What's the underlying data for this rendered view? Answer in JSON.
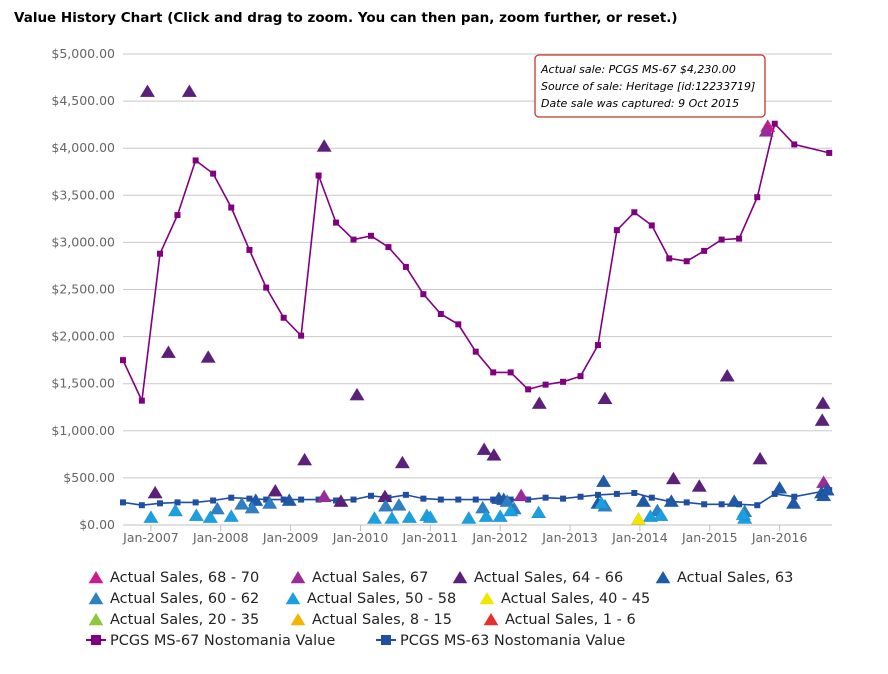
{
  "title": "Value History Chart (Click and drag to zoom. You can then pan, zoom further, or reset.)",
  "tooltip": {
    "lines": [
      "Actual sale: PCGS MS-67 $4,230.00",
      "Source of sale: Heritage [id:12233719]",
      "Date sale was captured: 9 Oct 2015"
    ]
  },
  "chart_data": {
    "type": "scatter",
    "ylim": [
      0,
      5000
    ],
    "xlim": [
      2006.6,
      2016.75
    ],
    "y_ticks": [
      0,
      500,
      1000,
      1500,
      2000,
      2500,
      3000,
      3500,
      4000,
      4500,
      5000
    ],
    "y_tick_labels": [
      "$0.00",
      "$500.00",
      "$1,000.00",
      "$1,500.00",
      "$2,000.00",
      "$2,500.00",
      "$3,000.00",
      "$3,500.00",
      "$4,000.00",
      "$4,500.00",
      "$5,000.00"
    ],
    "x_ticks": [
      2007,
      2008,
      2009,
      2010,
      2011,
      2012,
      2013,
      2014,
      2015,
      2016
    ],
    "x_tick_labels": [
      "Jan-2007",
      "Jan-2008",
      "Jan-2009",
      "Jan-2010",
      "Jan-2011",
      "Jan-2012",
      "Jan-2013",
      "Jan-2014",
      "Jan-2015",
      "Jan-2016"
    ],
    "grid": true,
    "legend_position": "bottom",
    "series": [
      {
        "name": "Actual Sales, 68 - 70",
        "marker": "triangle",
        "color": "#cc1a8c",
        "points": [
          [
            2015.83,
            4230
          ]
        ]
      },
      {
        "name": "Actual Sales, 67",
        "marker": "triangle",
        "color": "#9b2a9b",
        "points": [
          [
            2015.81,
            4180
          ],
          [
            2009.48,
            300
          ],
          [
            2012.3,
            310
          ],
          [
            2016.63,
            450
          ]
        ]
      },
      {
        "name": "Actual Sales, 64 - 66",
        "marker": "triangle",
        "color": "#5c1f7a",
        "points": [
          [
            2006.95,
            4600
          ],
          [
            2007.55,
            4600
          ],
          [
            2009.48,
            4020
          ],
          [
            2007.25,
            1830
          ],
          [
            2007.82,
            1780
          ],
          [
            2009.95,
            1380
          ],
          [
            2012.56,
            1290
          ],
          [
            2013.5,
            1340
          ],
          [
            2015.25,
            1580
          ],
          [
            2016.62,
            1290
          ],
          [
            2016.61,
            1110
          ],
          [
            2011.77,
            800
          ],
          [
            2011.91,
            740
          ],
          [
            2009.2,
            690
          ],
          [
            2010.6,
            660
          ],
          [
            2015.72,
            700
          ],
          [
            2014.48,
            490
          ],
          [
            2014.85,
            410
          ],
          [
            2007.06,
            340
          ],
          [
            2008.78,
            360
          ],
          [
            2009.72,
            250
          ],
          [
            2010.35,
            300
          ]
        ]
      },
      {
        "name": "Actual Sales, 63",
        "marker": "triangle",
        "color": "#1f5aa8",
        "points": [
          [
            2013.48,
            460
          ],
          [
            2016.0,
            390
          ],
          [
            2016.6,
            340
          ],
          [
            2008.5,
            260
          ],
          [
            2008.98,
            260
          ],
          [
            2011.98,
            280
          ],
          [
            2012.05,
            270
          ],
          [
            2014.05,
            250
          ],
          [
            2014.45,
            250
          ],
          [
            2015.35,
            250
          ],
          [
            2016.2,
            230
          ],
          [
            2013.4,
            230
          ],
          [
            2016.63,
            310
          ],
          [
            2016.68,
            370
          ]
        ]
      },
      {
        "name": "Actual Sales, 60 - 62",
        "marker": "triangle",
        "color": "#2e7fc4",
        "points": [
          [
            2008.3,
            220
          ],
          [
            2008.45,
            180
          ],
          [
            2010.36,
            200
          ],
          [
            2010.55,
            210
          ],
          [
            2011.75,
            180
          ],
          [
            2012.2,
            170
          ],
          [
            2013.5,
            200
          ],
          [
            2014.25,
            150
          ],
          [
            2015.5,
            140
          ],
          [
            2008.7,
            230
          ],
          [
            2012.1,
            250
          ],
          [
            2007.95,
            170
          ]
        ]
      },
      {
        "name": "Actual Sales, 50 - 58",
        "marker": "triangle",
        "color": "#1aa0e0",
        "points": [
          [
            2007.0,
            80
          ],
          [
            2007.35,
            150
          ],
          [
            2007.65,
            100
          ],
          [
            2007.85,
            80
          ],
          [
            2008.15,
            90
          ],
          [
            2010.2,
            70
          ],
          [
            2010.45,
            70
          ],
          [
            2010.7,
            80
          ],
          [
            2010.95,
            100
          ],
          [
            2011.55,
            70
          ],
          [
            2011.8,
            90
          ],
          [
            2012.0,
            90
          ],
          [
            2012.55,
            130
          ],
          [
            2013.45,
            230
          ],
          [
            2014.15,
            90
          ],
          [
            2014.3,
            100
          ],
          [
            2015.5,
            70
          ],
          [
            2015.48,
            110
          ],
          [
            2012.15,
            150
          ],
          [
            2011.0,
            80
          ]
        ]
      },
      {
        "name": "Actual Sales, 40 - 45",
        "marker": "triangle",
        "color": "#f2e600",
        "points": [
          [
            2013.98,
            60
          ]
        ]
      },
      {
        "name": "Actual Sales, 20 - 35",
        "marker": "triangle",
        "color": "#8ec63f",
        "points": []
      },
      {
        "name": "Actual Sales, 8 - 15",
        "marker": "triangle",
        "color": "#f2b600",
        "points": []
      },
      {
        "name": "Actual Sales, 1 - 6",
        "marker": "triangle",
        "color": "#e8302a",
        "points": []
      },
      {
        "name": "PCGS MS-67 Nostomania Value",
        "marker": "square",
        "line": true,
        "color": "#800080",
        "points": [
          [
            2006.6,
            1750
          ],
          [
            2006.87,
            1320
          ],
          [
            2007.13,
            2880
          ],
          [
            2007.38,
            3290
          ],
          [
            2007.64,
            3870
          ],
          [
            2007.89,
            3730
          ],
          [
            2008.15,
            3370
          ],
          [
            2008.41,
            2920
          ],
          [
            2008.65,
            2520
          ],
          [
            2008.9,
            2200
          ],
          [
            2009.15,
            2010
          ],
          [
            2009.4,
            3710
          ],
          [
            2009.65,
            3210
          ],
          [
            2009.9,
            3030
          ],
          [
            2010.15,
            3070
          ],
          [
            2010.4,
            2950
          ],
          [
            2010.65,
            2740
          ],
          [
            2010.9,
            2450
          ],
          [
            2011.15,
            2240
          ],
          [
            2011.4,
            2130
          ],
          [
            2011.65,
            1840
          ],
          [
            2011.9,
            1620
          ],
          [
            2012.15,
            1620
          ],
          [
            2012.4,
            1440
          ],
          [
            2012.65,
            1490
          ],
          [
            2012.9,
            1520
          ],
          [
            2013.15,
            1580
          ],
          [
            2013.4,
            1910
          ],
          [
            2013.67,
            3130
          ],
          [
            2013.92,
            3320
          ],
          [
            2014.17,
            3180
          ],
          [
            2014.42,
            2830
          ],
          [
            2014.67,
            2800
          ],
          [
            2014.92,
            2910
          ],
          [
            2015.17,
            3030
          ],
          [
            2015.42,
            3040
          ],
          [
            2015.68,
            3480
          ],
          [
            2015.93,
            4260
          ],
          [
            2016.21,
            4040
          ],
          [
            2016.71,
            3950
          ]
        ]
      },
      {
        "name": "PCGS MS-63 Nostomania Value",
        "marker": "square",
        "line": true,
        "color": "#1f4ea3",
        "points": [
          [
            2006.6,
            240
          ],
          [
            2006.87,
            210
          ],
          [
            2007.13,
            230
          ],
          [
            2007.38,
            240
          ],
          [
            2007.64,
            240
          ],
          [
            2007.89,
            260
          ],
          [
            2008.15,
            290
          ],
          [
            2008.41,
            280
          ],
          [
            2008.65,
            270
          ],
          [
            2008.9,
            270
          ],
          [
            2009.15,
            270
          ],
          [
            2009.4,
            270
          ],
          [
            2009.65,
            260
          ],
          [
            2009.9,
            270
          ],
          [
            2010.15,
            310
          ],
          [
            2010.4,
            290
          ],
          [
            2010.65,
            320
          ],
          [
            2010.9,
            280
          ],
          [
            2011.15,
            270
          ],
          [
            2011.4,
            270
          ],
          [
            2011.65,
            270
          ],
          [
            2011.9,
            270
          ],
          [
            2012.15,
            270
          ],
          [
            2012.4,
            270
          ],
          [
            2012.65,
            290
          ],
          [
            2012.9,
            280
          ],
          [
            2013.15,
            300
          ],
          [
            2013.4,
            320
          ],
          [
            2013.67,
            330
          ],
          [
            2013.92,
            340
          ],
          [
            2014.17,
            290
          ],
          [
            2014.42,
            250
          ],
          [
            2014.67,
            240
          ],
          [
            2014.92,
            220
          ],
          [
            2015.17,
            220
          ],
          [
            2015.42,
            220
          ],
          [
            2015.68,
            210
          ],
          [
            2015.93,
            330
          ],
          [
            2016.21,
            300
          ],
          [
            2016.71,
            370
          ]
        ]
      }
    ]
  }
}
